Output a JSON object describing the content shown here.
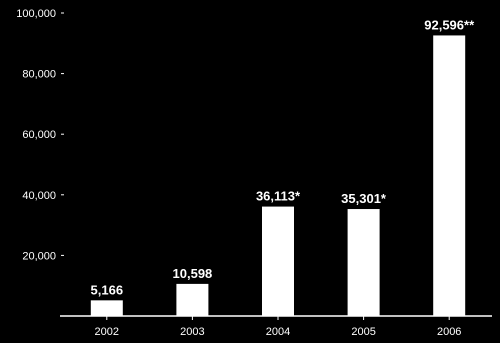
{
  "chart_data": {
    "type": "bar",
    "categories": [
      "2002",
      "2003",
      "2004",
      "2005",
      "2006"
    ],
    "values": [
      5166,
      10598,
      36113,
      35301,
      92596
    ],
    "data_labels": [
      "5,166",
      "10,598",
      "36,113*",
      "35,301*",
      "92,596**"
    ],
    "ylim": [
      0,
      100000
    ],
    "y_ticks": [
      20000,
      40000,
      60000,
      80000,
      100000
    ],
    "y_tick_labels": [
      "20,000",
      "40,000",
      "60,000",
      "80,000",
      "100,000"
    ],
    "title": "",
    "xlabel": "",
    "ylabel": "",
    "grid": false,
    "colors": {
      "background": "#000000",
      "bar": "#ffffff",
      "text": "#ffffff",
      "axis": "#ffffff"
    }
  }
}
